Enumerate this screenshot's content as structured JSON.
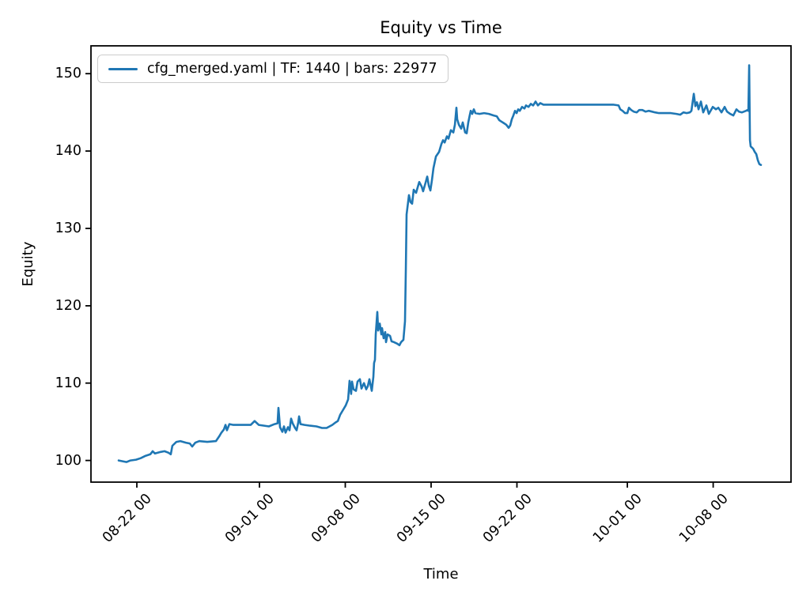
{
  "chart_data": {
    "type": "line",
    "title": "Equity vs Time",
    "xlabel": "Time",
    "ylabel": "Equity",
    "grid": false,
    "legend_position": "upper left",
    "x_unit": "days since 08-22 00:00",
    "xlim": [
      -3.74,
      53.35
    ],
    "ylim": [
      97.2,
      153.6
    ],
    "x_ticks": [
      {
        "day": 0,
        "label": "08-22 00"
      },
      {
        "day": 10,
        "label": "09-01 00"
      },
      {
        "day": 17,
        "label": "09-08 00"
      },
      {
        "day": 24,
        "label": "09-15 00"
      },
      {
        "day": 31,
        "label": "09-22 00"
      },
      {
        "day": 40,
        "label": "10-01 00"
      },
      {
        "day": 47,
        "label": "10-08 00"
      }
    ],
    "y_ticks": [
      {
        "value": 100,
        "label": "100"
      },
      {
        "value": 110,
        "label": "110"
      },
      {
        "value": 120,
        "label": "120"
      },
      {
        "value": 130,
        "label": "130"
      },
      {
        "value": 140,
        "label": "140"
      },
      {
        "value": 150,
        "label": "150"
      }
    ],
    "series": [
      {
        "name": "cfg_merged.yaml | TF: 1440 | bars: 22977",
        "color": "#1f77b4",
        "points": [
          [
            -1.48,
            100.0
          ],
          [
            -1.16,
            99.9
          ],
          [
            -0.84,
            99.8
          ],
          [
            -0.52,
            100.0
          ],
          [
            -0.06,
            100.1
          ],
          [
            0.32,
            100.3
          ],
          [
            0.71,
            100.6
          ],
          [
            1.1,
            100.8
          ],
          [
            1.29,
            101.2
          ],
          [
            1.48,
            100.9
          ],
          [
            1.94,
            101.1
          ],
          [
            2.26,
            101.2
          ],
          [
            2.58,
            101.0
          ],
          [
            2.77,
            100.8
          ],
          [
            2.9,
            101.9
          ],
          [
            3.23,
            102.4
          ],
          [
            3.55,
            102.5
          ],
          [
            4.0,
            102.3
          ],
          [
            4.32,
            102.2
          ],
          [
            4.52,
            101.8
          ],
          [
            4.77,
            102.3
          ],
          [
            5.1,
            102.5
          ],
          [
            5.74,
            102.4
          ],
          [
            6.45,
            102.5
          ],
          [
            6.71,
            103.1
          ],
          [
            6.9,
            103.6
          ],
          [
            7.1,
            104.0
          ],
          [
            7.23,
            104.6
          ],
          [
            7.35,
            103.9
          ],
          [
            7.55,
            104.7
          ],
          [
            7.87,
            104.6
          ],
          [
            8.52,
            104.6
          ],
          [
            9.29,
            104.6
          ],
          [
            9.61,
            105.1
          ],
          [
            9.94,
            104.6
          ],
          [
            10.39,
            104.5
          ],
          [
            10.77,
            104.4
          ],
          [
            11.23,
            104.7
          ],
          [
            11.48,
            104.8
          ],
          [
            11.55,
            106.8
          ],
          [
            11.68,
            104.3
          ],
          [
            11.87,
            103.7
          ],
          [
            12.0,
            104.4
          ],
          [
            12.13,
            103.6
          ],
          [
            12.32,
            104.3
          ],
          [
            12.45,
            103.9
          ],
          [
            12.58,
            105.4
          ],
          [
            12.71,
            104.8
          ],
          [
            12.9,
            104.2
          ],
          [
            13.03,
            103.9
          ],
          [
            13.16,
            104.9
          ],
          [
            13.23,
            105.7
          ],
          [
            13.35,
            104.7
          ],
          [
            13.68,
            104.6
          ],
          [
            14.13,
            104.5
          ],
          [
            14.65,
            104.4
          ],
          [
            15.1,
            104.2
          ],
          [
            15.48,
            104.2
          ],
          [
            15.94,
            104.6
          ],
          [
            16.19,
            104.9
          ],
          [
            16.39,
            105.1
          ],
          [
            16.58,
            105.9
          ],
          [
            16.77,
            106.4
          ],
          [
            17.03,
            107.1
          ],
          [
            17.23,
            107.9
          ],
          [
            17.35,
            110.3
          ],
          [
            17.48,
            108.6
          ],
          [
            17.55,
            110.2
          ],
          [
            17.68,
            109.2
          ],
          [
            17.87,
            109.0
          ],
          [
            18.0,
            110.2
          ],
          [
            18.19,
            110.5
          ],
          [
            18.32,
            109.3
          ],
          [
            18.52,
            110.0
          ],
          [
            18.71,
            109.2
          ],
          [
            18.84,
            109.6
          ],
          [
            18.97,
            110.5
          ],
          [
            19.16,
            109.0
          ],
          [
            19.29,
            110.8
          ],
          [
            19.35,
            112.6
          ],
          [
            19.42,
            113.0
          ],
          [
            19.48,
            116.3
          ],
          [
            19.61,
            119.2
          ],
          [
            19.68,
            116.8
          ],
          [
            19.81,
            117.7
          ],
          [
            19.94,
            116.3
          ],
          [
            20.0,
            117.1
          ],
          [
            20.13,
            115.8
          ],
          [
            20.26,
            116.6
          ],
          [
            20.32,
            115.3
          ],
          [
            20.45,
            116.3
          ],
          [
            20.65,
            116.1
          ],
          [
            20.77,
            115.4
          ],
          [
            20.97,
            115.3
          ],
          [
            21.23,
            115.1
          ],
          [
            21.42,
            114.9
          ],
          [
            21.55,
            115.3
          ],
          [
            21.74,
            115.6
          ],
          [
            21.87,
            118.0
          ],
          [
            21.94,
            125.0
          ],
          [
            22.0,
            131.8
          ],
          [
            22.19,
            134.3
          ],
          [
            22.32,
            133.4
          ],
          [
            22.45,
            133.2
          ],
          [
            22.58,
            135.0
          ],
          [
            22.77,
            134.6
          ],
          [
            22.9,
            135.3
          ],
          [
            23.03,
            136.0
          ],
          [
            23.23,
            135.4
          ],
          [
            23.35,
            134.8
          ],
          [
            23.55,
            135.9
          ],
          [
            23.68,
            136.7
          ],
          [
            23.81,
            135.5
          ],
          [
            23.94,
            134.9
          ],
          [
            24.06,
            136.2
          ],
          [
            24.19,
            137.8
          ],
          [
            24.39,
            139.3
          ],
          [
            24.65,
            139.9
          ],
          [
            24.84,
            140.9
          ],
          [
            24.97,
            141.4
          ],
          [
            25.1,
            141.1
          ],
          [
            25.29,
            141.9
          ],
          [
            25.42,
            141.6
          ],
          [
            25.61,
            142.7
          ],
          [
            25.81,
            142.4
          ],
          [
            25.94,
            143.4
          ],
          [
            26.06,
            145.6
          ],
          [
            26.13,
            144.1
          ],
          [
            26.26,
            143.4
          ],
          [
            26.45,
            142.9
          ],
          [
            26.58,
            143.7
          ],
          [
            26.77,
            142.4
          ],
          [
            26.9,
            142.3
          ],
          [
            27.03,
            143.7
          ],
          [
            27.16,
            144.7
          ],
          [
            27.23,
            145.2
          ],
          [
            27.35,
            144.8
          ],
          [
            27.48,
            145.4
          ],
          [
            27.61,
            144.9
          ],
          [
            27.94,
            144.8
          ],
          [
            28.32,
            144.9
          ],
          [
            28.71,
            144.8
          ],
          [
            29.1,
            144.6
          ],
          [
            29.35,
            144.5
          ],
          [
            29.55,
            144.0
          ],
          [
            29.74,
            143.8
          ],
          [
            29.94,
            143.6
          ],
          [
            30.13,
            143.4
          ],
          [
            30.32,
            143.0
          ],
          [
            30.45,
            143.3
          ],
          [
            30.58,
            144.1
          ],
          [
            30.71,
            144.6
          ],
          [
            30.84,
            145.2
          ],
          [
            30.97,
            144.9
          ],
          [
            31.1,
            145.4
          ],
          [
            31.23,
            145.2
          ],
          [
            31.42,
            145.7
          ],
          [
            31.61,
            145.5
          ],
          [
            31.74,
            145.9
          ],
          [
            31.94,
            145.7
          ],
          [
            32.13,
            146.1
          ],
          [
            32.32,
            145.9
          ],
          [
            32.52,
            146.4
          ],
          [
            32.71,
            145.9
          ],
          [
            32.9,
            146.2
          ],
          [
            33.16,
            146.0
          ],
          [
            34.0,
            146.0
          ],
          [
            34.97,
            146.0
          ],
          [
            35.94,
            146.0
          ],
          [
            36.9,
            146.0
          ],
          [
            37.87,
            146.0
          ],
          [
            38.84,
            146.0
          ],
          [
            39.29,
            145.9
          ],
          [
            39.42,
            145.4
          ],
          [
            39.61,
            145.2
          ],
          [
            39.81,
            144.9
          ],
          [
            40.0,
            144.9
          ],
          [
            40.13,
            145.6
          ],
          [
            40.32,
            145.3
          ],
          [
            40.52,
            145.1
          ],
          [
            40.77,
            145.0
          ],
          [
            40.97,
            145.3
          ],
          [
            41.23,
            145.3
          ],
          [
            41.48,
            145.1
          ],
          [
            41.74,
            145.2
          ],
          [
            42.0,
            145.1
          ],
          [
            42.26,
            145.0
          ],
          [
            42.58,
            144.9
          ],
          [
            43.03,
            144.9
          ],
          [
            43.55,
            144.9
          ],
          [
            44.0,
            144.8
          ],
          [
            44.32,
            144.7
          ],
          [
            44.58,
            145.0
          ],
          [
            44.84,
            144.9
          ],
          [
            45.1,
            145.0
          ],
          [
            45.23,
            145.2
          ],
          [
            45.35,
            146.6
          ],
          [
            45.42,
            147.4
          ],
          [
            45.55,
            145.8
          ],
          [
            45.68,
            146.3
          ],
          [
            45.81,
            145.4
          ],
          [
            46.0,
            146.4
          ],
          [
            46.19,
            145.0
          ],
          [
            46.45,
            145.9
          ],
          [
            46.65,
            144.8
          ],
          [
            46.97,
            145.7
          ],
          [
            47.23,
            145.4
          ],
          [
            47.42,
            145.6
          ],
          [
            47.68,
            145.0
          ],
          [
            47.94,
            145.7
          ],
          [
            48.13,
            145.1
          ],
          [
            48.39,
            144.8
          ],
          [
            48.65,
            144.6
          ],
          [
            48.9,
            145.4
          ],
          [
            49.1,
            145.1
          ],
          [
            49.35,
            145.0
          ],
          [
            49.68,
            145.2
          ],
          [
            49.81,
            145.3
          ],
          [
            49.87,
            145.2
          ],
          [
            49.94,
            151.1
          ],
          [
            50.0,
            141.4
          ],
          [
            50.06,
            140.6
          ],
          [
            50.26,
            140.3
          ],
          [
            50.39,
            139.9
          ],
          [
            50.52,
            139.6
          ],
          [
            50.65,
            138.8
          ],
          [
            50.77,
            138.3
          ],
          [
            50.9,
            138.2
          ]
        ]
      }
    ]
  },
  "colors": {
    "line": "#1f77b4",
    "text": "#000000",
    "spine": "#000000",
    "legend_border": "#cccccc"
  }
}
